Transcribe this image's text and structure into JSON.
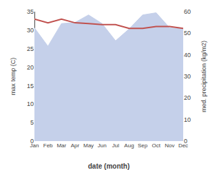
{
  "chart_data": {
    "type": "line",
    "categories": [
      "Jan",
      "Feb",
      "Mar",
      "Apr",
      "May",
      "Jun",
      "Jul",
      "Aug",
      "Sep",
      "Oct",
      "Nov",
      "Dec"
    ],
    "series": [
      {
        "type": "area",
        "axis": "y2",
        "color": "#c5d0ea",
        "values": [
          52.5,
          44.0,
          54.5,
          55.0,
          58.5,
          54.5,
          46.5,
          52.0,
          58.5,
          59.5,
          52.5,
          52.0
        ]
      },
      {
        "type": "line",
        "color": "#c0504d",
        "values": [
          33.0,
          32.0,
          33.0,
          32.0,
          31.8,
          31.5,
          31.5,
          30.5,
          30.5,
          31.0,
          31.0,
          30.5
        ]
      }
    ],
    "xlabel": "date (month)",
    "ylabel": "max temp (C)",
    "y2label": "med. precipitation (kg/m2)",
    "ylim": [
      0,
      35
    ],
    "yticks": [
      0,
      5,
      10,
      15,
      20,
      25,
      30,
      35
    ],
    "y2lim": [
      0,
      60
    ],
    "y2ticks": [
      0,
      10,
      20,
      30,
      40,
      50,
      60
    ],
    "grid": false
  }
}
